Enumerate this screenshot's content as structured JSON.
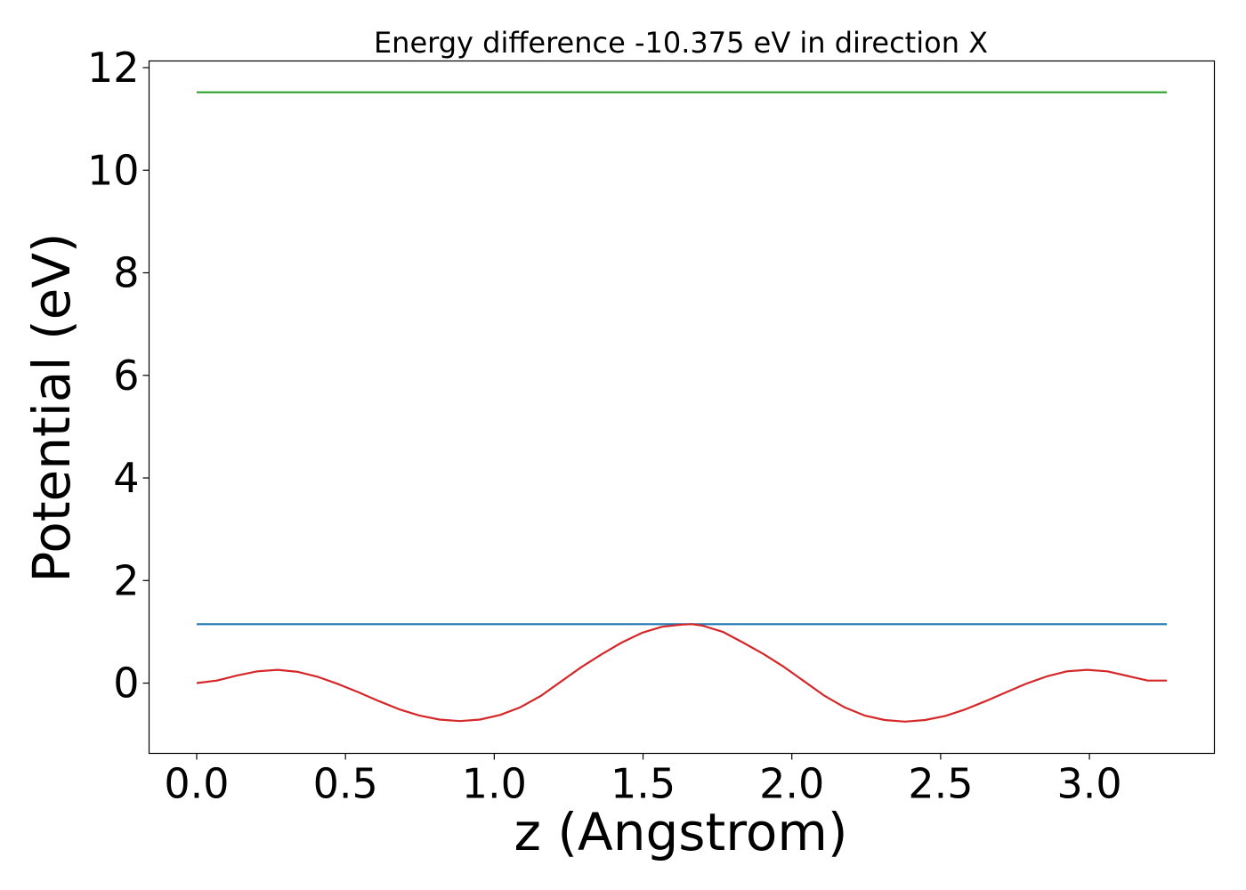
{
  "chart_data": {
    "type": "line",
    "title": "Energy difference -10.375 eV in direction X",
    "xlabel": "z (Angstrom)",
    "ylabel": "Potential (eV)",
    "xlim": [
      -0.16,
      3.42
    ],
    "ylim": [
      -1.37,
      12.13
    ],
    "xticks": [
      0.0,
      0.5,
      1.0,
      1.5,
      2.0,
      2.5,
      3.0
    ],
    "xtick_labels": [
      "0.0",
      "0.5",
      "1.0",
      "1.5",
      "2.0",
      "2.5",
      "3.0"
    ],
    "yticks": [
      0,
      2,
      4,
      6,
      8,
      10,
      12
    ],
    "ytick_labels": [
      "0",
      "2",
      "4",
      "6",
      "8",
      "10",
      "12"
    ],
    "grid": false,
    "legend": "none",
    "series": [
      {
        "color": "#2ca02c",
        "x": [
          0.0,
          3.26
        ],
        "y": [
          11.52,
          11.52
        ]
      },
      {
        "color": "#1f77b4",
        "x": [
          0.0,
          3.26
        ],
        "y": [
          1.15,
          1.15
        ]
      },
      {
        "color": "#d62728",
        "x": [
          0.0,
          0.068,
          0.136,
          0.204,
          0.272,
          0.34,
          0.408,
          0.476,
          0.544,
          0.612,
          0.68,
          0.748,
          0.816,
          0.884,
          0.952,
          1.02,
          1.088,
          1.156,
          1.224,
          1.292,
          1.36,
          1.428,
          1.496,
          1.564,
          1.632,
          1.665,
          1.7,
          1.768,
          1.836,
          1.904,
          1.972,
          2.04,
          2.108,
          2.176,
          2.244,
          2.312,
          2.38,
          2.448,
          2.516,
          2.584,
          2.652,
          2.72,
          2.788,
          2.856,
          2.924,
          2.992,
          3.06,
          3.128,
          3.196,
          3.26
        ],
        "y": [
          0.0,
          0.05,
          0.15,
          0.23,
          0.26,
          0.22,
          0.12,
          -0.02,
          -0.18,
          -0.35,
          -0.51,
          -0.63,
          -0.71,
          -0.74,
          -0.71,
          -0.62,
          -0.47,
          -0.25,
          0.03,
          0.31,
          0.56,
          0.79,
          0.98,
          1.1,
          1.14,
          1.15,
          1.12,
          1.0,
          0.79,
          0.57,
          0.32,
          0.04,
          -0.24,
          -0.47,
          -0.63,
          -0.72,
          -0.75,
          -0.72,
          -0.64,
          -0.51,
          -0.35,
          -0.18,
          -0.01,
          0.13,
          0.23,
          0.26,
          0.23,
          0.14,
          0.05,
          0.05
        ]
      }
    ]
  }
}
